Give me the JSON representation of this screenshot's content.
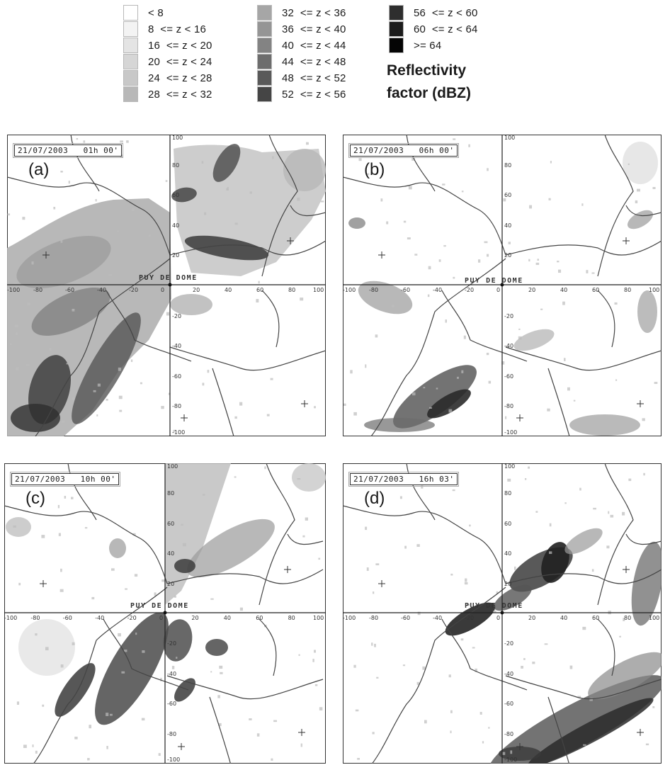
{
  "legend": {
    "items": [
      {
        "label": "< 8",
        "color": "#ffffff"
      },
      {
        "label": "8  <= z < 16",
        "color": "#f3f3f3"
      },
      {
        "label": "16  <= z < 20",
        "color": "#e4e4e4"
      },
      {
        "label": "20  <= z < 24",
        "color": "#d6d6d6"
      },
      {
        "label": "24  <= z < 28",
        "color": "#c8c8c8"
      },
      {
        "label": "28  <= z < 32",
        "color": "#b8b8b8"
      },
      {
        "label": "32  <= z < 36",
        "color": "#a6a6a6"
      },
      {
        "label": "36  <= z < 40",
        "color": "#959595"
      },
      {
        "label": "40  <= z < 44",
        "color": "#838383"
      },
      {
        "label": "44  <= z < 48",
        "color": "#6d6d6d"
      },
      {
        "label": "48  <= z < 52",
        "color": "#595959"
      },
      {
        "label": "52  <= z < 56",
        "color": "#454545"
      },
      {
        "label": "56  <= z < 60",
        "color": "#2e2e2e"
      },
      {
        "label": "60  <= z < 64",
        "color": "#1c1c1c"
      },
      {
        "label": ">= 64",
        "color": "#050505"
      }
    ],
    "title_line1": "Reflectivity",
    "title_line2": "factor (dBZ)"
  },
  "panels": [
    {
      "id": "a",
      "label": "(a)",
      "timestamp": "21/07/2003   01h 00'"
    },
    {
      "id": "b",
      "label": "(b)",
      "timestamp": "21/07/2003   06h 00'"
    },
    {
      "id": "c",
      "label": "(c)",
      "timestamp": "21/07/2003   10h 00'"
    },
    {
      "id": "d",
      "label": "(d)",
      "timestamp": "21/07/2003   16h 03'"
    }
  ],
  "site_label": "PUY DE DOME",
  "axis": {
    "x_ticks": [
      "-100",
      "-80",
      "-60",
      "-40",
      "-20",
      "0",
      "20",
      "40",
      "60",
      "80",
      "100"
    ],
    "y_ticks": [
      "100",
      "80",
      "60",
      "40",
      "20",
      "-20",
      "-40",
      "-60",
      "-80",
      "-100"
    ]
  }
}
